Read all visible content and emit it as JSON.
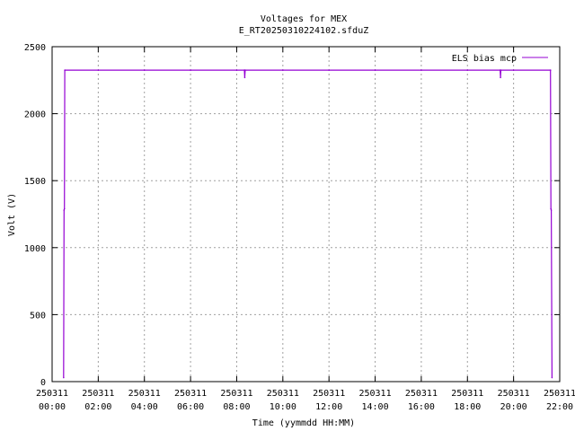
{
  "chart_data": {
    "type": "line",
    "title": "Voltages for MEX",
    "subtitle": "E_RT20250310224102.sfduZ",
    "xlabel": "Time (yymmdd HH:MM)",
    "ylabel": "Volt (V)",
    "xlim": [
      "250311 00:00",
      "250311 22:00"
    ],
    "ylim": [
      0,
      2500
    ],
    "grid": true,
    "legend_position": "top-right",
    "x_ticks": [
      {
        "date": "250311",
        "time": "00:00"
      },
      {
        "date": "250311",
        "time": "02:00"
      },
      {
        "date": "250311",
        "time": "04:00"
      },
      {
        "date": "250311",
        "time": "06:00"
      },
      {
        "date": "250311",
        "time": "08:00"
      },
      {
        "date": "250311",
        "time": "10:00"
      },
      {
        "date": "250311",
        "time": "12:00"
      },
      {
        "date": "250311",
        "time": "14:00"
      },
      {
        "date": "250311",
        "time": "16:00"
      },
      {
        "date": "250311",
        "time": "18:00"
      },
      {
        "date": "250311",
        "time": "20:00"
      },
      {
        "date": "250311",
        "time": "22:00"
      }
    ],
    "y_ticks": [
      "0",
      "500",
      "1000",
      "1500",
      "2000",
      "2500"
    ],
    "series": [
      {
        "name": "ELS bias mcp",
        "color": "#9400d3",
        "points": [
          [
            "250311 00:30",
            30
          ],
          [
            "250311 00:31",
            1280
          ],
          [
            "250311 00:32",
            1290
          ],
          [
            "250311 00:33",
            2325
          ],
          [
            "250311 02:00",
            2325
          ],
          [
            "250311 04:00",
            2325
          ],
          [
            "250311 06:00",
            2325
          ],
          [
            "250311 08:00",
            2325
          ],
          [
            "250311 08:20",
            2325
          ],
          [
            "250311 08:21",
            2270
          ],
          [
            "250311 08:22",
            2325
          ],
          [
            "250311 10:00",
            2325
          ],
          [
            "250311 12:00",
            2325
          ],
          [
            "250311 14:00",
            2325
          ],
          [
            "250311 16:00",
            2325
          ],
          [
            "250311 18:00",
            2325
          ],
          [
            "250311 19:25",
            2325
          ],
          [
            "250311 19:26",
            2270
          ],
          [
            "250311 19:27",
            2325
          ],
          [
            "250311 20:00",
            2325
          ],
          [
            "250311 21:36",
            2325
          ],
          [
            "250311 21:37",
            1290
          ],
          [
            "250311 21:38",
            1280
          ],
          [
            "250311 21:40",
            30
          ]
        ]
      }
    ]
  }
}
